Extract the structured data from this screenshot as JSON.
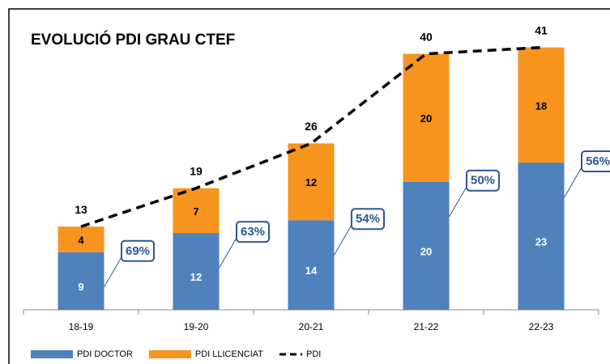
{
  "chart_data": {
    "type": "stacked-bar-line",
    "title": "EVOLUCIÓ PDI GRAU CTEF",
    "categories": [
      "18-19",
      "19-20",
      "20-21",
      "21-22",
      "22-23"
    ],
    "series": [
      {
        "name": "PDI DOCTOR",
        "color": "#4f81bd",
        "values": [
          9,
          12,
          14,
          20,
          23
        ]
      },
      {
        "name": "PDI LLICENCIAT",
        "color": "#f7941d",
        "values": [
          4,
          7,
          12,
          20,
          18
        ]
      },
      {
        "name": "PDI",
        "color": "#000000",
        "kind": "line",
        "values": [
          13,
          19,
          26,
          40,
          41
        ]
      }
    ],
    "percentages": {
      "values": [
        69,
        63,
        54,
        50,
        56
      ],
      "value_labels": [
        "69%",
        "63%",
        "54%",
        "50%",
        "56%"
      ],
      "color": "#2f5597"
    },
    "ylim": [
      0,
      45
    ],
    "legend": "bottom-left"
  }
}
